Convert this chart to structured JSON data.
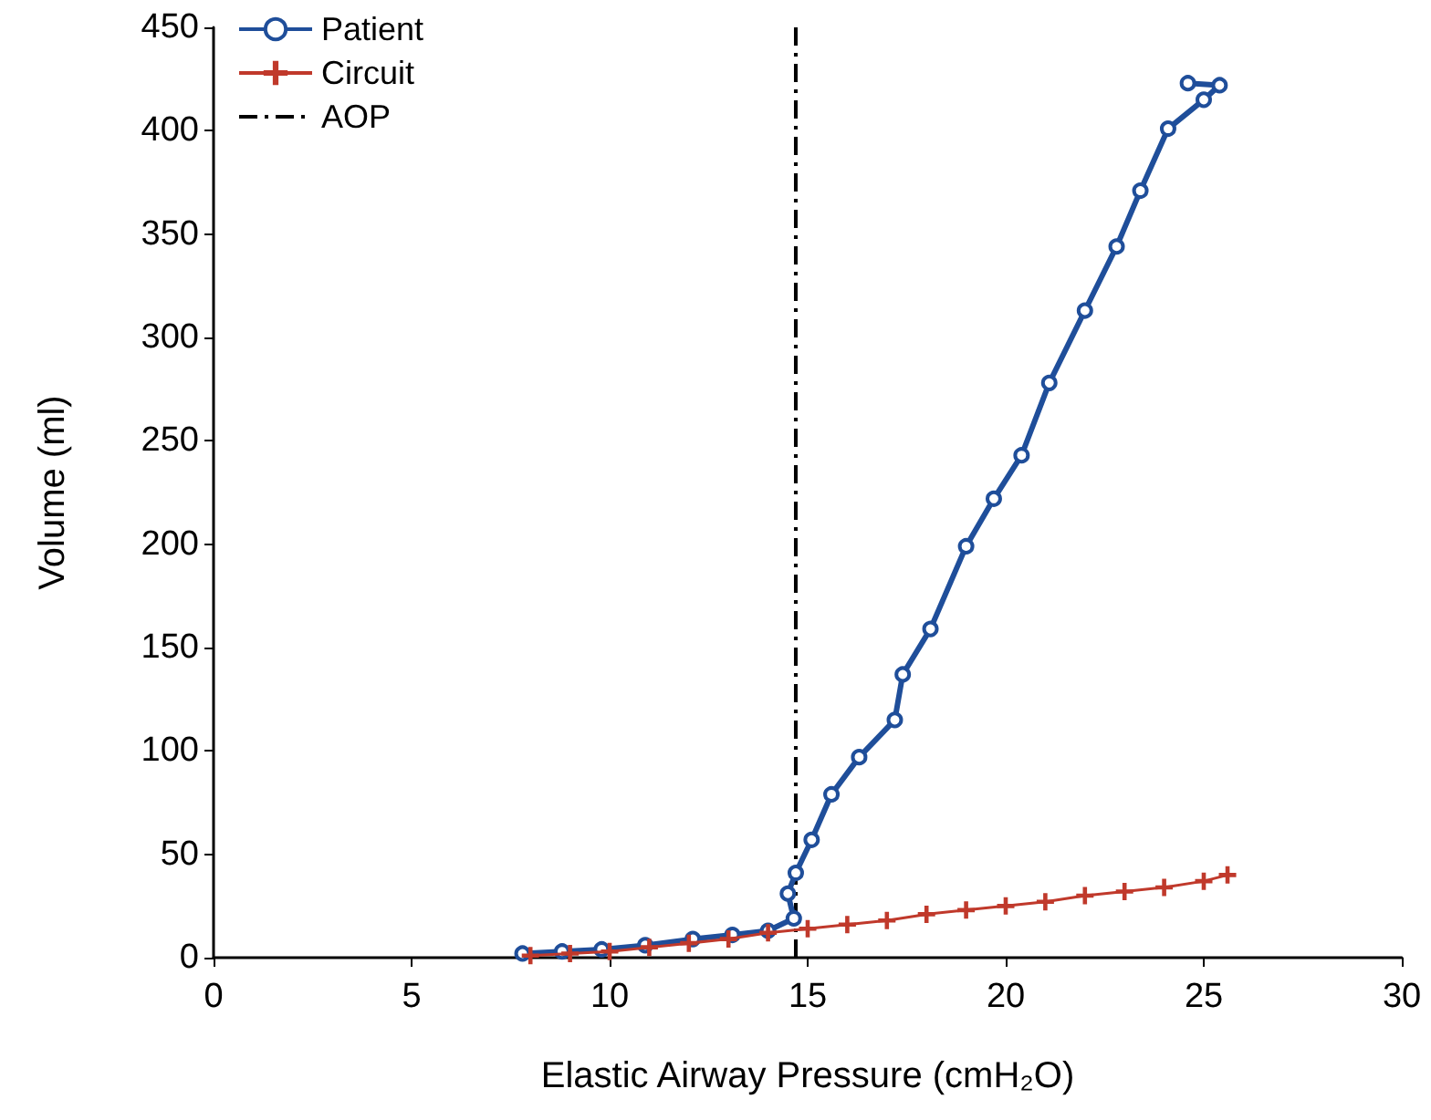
{
  "chart_data": {
    "type": "line",
    "xlabel": "Elastic Airway Pressure (cmH₂O)",
    "ylabel": "Volume (ml)",
    "xlim": [
      0,
      30
    ],
    "xticks": [
      0,
      5,
      10,
      15,
      20,
      25,
      30
    ],
    "ylim": [
      0,
      450
    ],
    "yticks": [
      0,
      50,
      100,
      150,
      200,
      250,
      300,
      350,
      400,
      450
    ],
    "grid": false,
    "legend": "top left",
    "series": [
      {
        "name": "Patient",
        "color": "#1f4e9a",
        "marker": "circle",
        "x": [
          7.8,
          8.8,
          9.8,
          10.9,
          12.1,
          13.1,
          14.0,
          14.65,
          14.5,
          14.7,
          15.1,
          15.6,
          16.3,
          17.2,
          17.4,
          18.1,
          19.0,
          19.7,
          20.4,
          21.1,
          22.0,
          22.8,
          23.4,
          24.1,
          25.0,
          25.4,
          24.6
        ],
        "values": [
          2,
          3,
          4,
          6,
          9,
          11,
          13,
          19,
          31,
          41,
          57,
          79,
          97,
          115,
          137,
          159,
          199,
          222,
          243,
          278,
          313,
          344,
          371,
          401,
          415,
          422,
          423
        ]
      },
      {
        "name": "Circuit",
        "color": "#c0392b",
        "marker": "cross",
        "x": [
          8,
          9,
          10,
          11,
          12,
          13,
          14,
          15,
          16,
          17,
          18,
          19,
          20,
          21,
          22,
          23,
          24,
          25,
          25.6
        ],
        "values": [
          1,
          2,
          3,
          5,
          7,
          9,
          12,
          14,
          16,
          18,
          21,
          23,
          25,
          27,
          30,
          32,
          34,
          37,
          40
        ]
      },
      {
        "name": "AOP",
        "color": "#000000",
        "marker": "none",
        "line_style": "dashdot",
        "x": [
          14.7,
          14.7
        ],
        "values": [
          0,
          450
        ]
      }
    ]
  }
}
